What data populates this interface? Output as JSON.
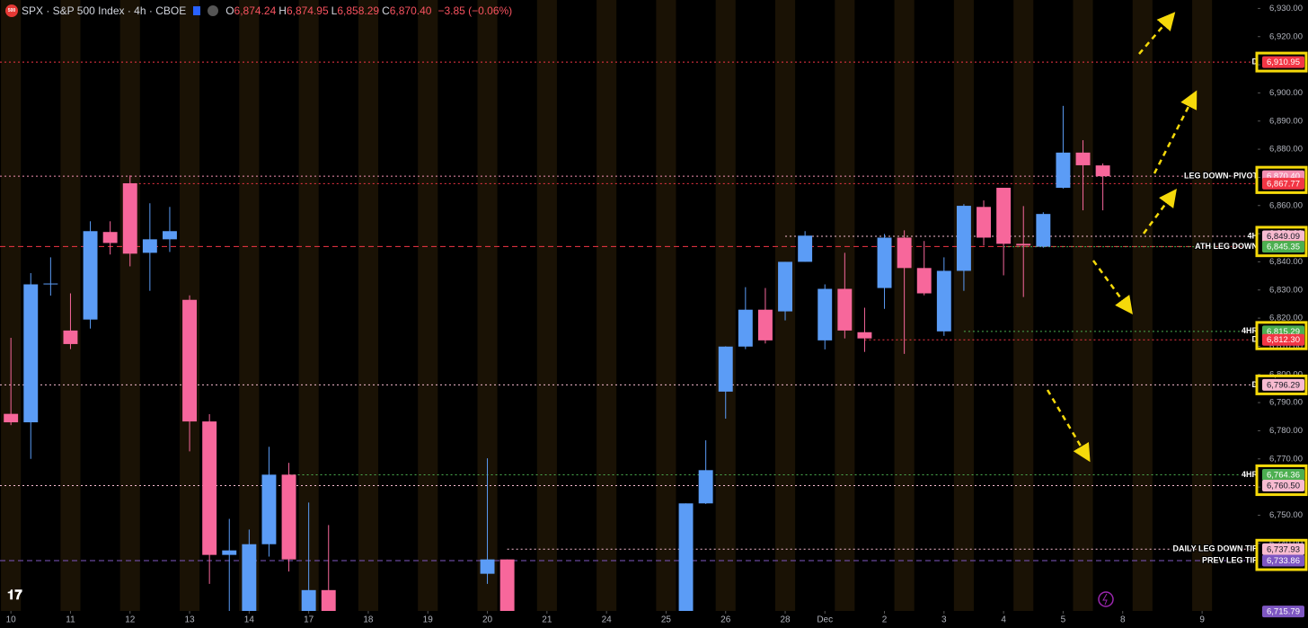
{
  "chart_data": {
    "type": "candlestick",
    "header": {
      "icon": "500",
      "symbol": "SPX · S&P 500 Index · 4h · CBOE",
      "ohlc": [
        {
          "key": "O",
          "value": "6,874.24"
        },
        {
          "key": "H",
          "value": "6,874.95"
        },
        {
          "key": "L",
          "value": "6,858.29"
        },
        {
          "key": "C",
          "value": "6,870.40"
        }
      ],
      "change": "−3.85 (−0.06%)"
    },
    "up_color": "#5b9cf6",
    "down_color": "#f7679b",
    "xlim": [
      -0.55,
      62.8
    ],
    "ylim": [
      6716,
      6933
    ],
    "xticks": [
      {
        "value": 0,
        "label": "10"
      },
      {
        "value": 3,
        "label": "11"
      },
      {
        "value": 6,
        "label": "12"
      },
      {
        "value": 9,
        "label": "13"
      },
      {
        "value": 12,
        "label": "14"
      },
      {
        "value": 15,
        "label": "17"
      },
      {
        "value": 18,
        "label": "18"
      },
      {
        "value": 21,
        "label": "19"
      },
      {
        "value": 24,
        "label": "20"
      },
      {
        "value": 27,
        "label": "21"
      },
      {
        "value": 30,
        "label": "24"
      },
      {
        "value": 33,
        "label": "25"
      },
      {
        "value": 36,
        "label": "26"
      },
      {
        "value": 39,
        "label": "28"
      },
      {
        "value": 41,
        "label": "Dec"
      },
      {
        "value": 44,
        "label": "2"
      },
      {
        "value": 47,
        "label": "3"
      },
      {
        "value": 50,
        "label": "4"
      },
      {
        "value": 53,
        "label": "5"
      },
      {
        "value": 56,
        "label": "8"
      },
      {
        "value": 60,
        "label": "9"
      }
    ],
    "yticks": [
      {
        "value": 6740,
        "label": "6,740.00"
      },
      {
        "value": 6750,
        "label": "6,750.00"
      },
      {
        "value": 6760,
        "label": "6,760.00"
      },
      {
        "value": 6770,
        "label": "6,770.00"
      },
      {
        "value": 6780,
        "label": "6,780.00"
      },
      {
        "value": 6790,
        "label": "6,790.00"
      },
      {
        "value": 6800,
        "label": "6,800.00"
      },
      {
        "value": 6810,
        "label": "6,810.00"
      },
      {
        "value": 6820,
        "label": "6,820.00"
      },
      {
        "value": 6830,
        "label": "6,830.00"
      },
      {
        "value": 6840,
        "label": "6,840.00"
      },
      {
        "value": 6850,
        "label": "6,850.00"
      },
      {
        "value": 6860,
        "label": "6,860.00"
      },
      {
        "value": 6870,
        "label": "6,870.00"
      },
      {
        "value": 6880,
        "label": "6,880.00"
      },
      {
        "value": 6890,
        "label": "6,890.00"
      },
      {
        "value": 6900,
        "label": "6,900.00"
      },
      {
        "value": 6910,
        "label": "6,910.00"
      },
      {
        "value": 6920,
        "label": "6,920.00"
      },
      {
        "value": 6930,
        "label": "6,930.00"
      }
    ],
    "candles": [
      {
        "x": 0,
        "open": 6786,
        "high": 6813,
        "low": 6782,
        "close": 6783
      },
      {
        "x": 1,
        "open": 6783,
        "high": 6836,
        "low": 6770,
        "close": 6832
      },
      {
        "x": 2,
        "open": 6832,
        "high": 6841.6,
        "low": 6828,
        "close": 6832.3
      },
      {
        "x": 3,
        "open": 6815.6,
        "high": 6828.8,
        "low": 6809,
        "close": 6810.8
      },
      {
        "x": 4,
        "open": 6819.5,
        "high": 6854.4,
        "low": 6816.3,
        "close": 6850.9
      },
      {
        "x": 5,
        "open": 6850.6,
        "high": 6854.4,
        "low": 6842.6,
        "close": 6846.7
      },
      {
        "x": 6,
        "open": 6867.9,
        "high": 6870.7,
        "low": 6838.4,
        "close": 6842.9
      },
      {
        "x": 7,
        "open": 6843.2,
        "high": 6860.8,
        "low": 6829.7,
        "close": 6848
      },
      {
        "x": 8,
        "open": 6848,
        "high": 6859.5,
        "low": 6843.5,
        "close": 6850.9
      },
      {
        "x": 9,
        "open": 6826.5,
        "high": 6828.1,
        "low": 6772.7,
        "close": 6783.3
      },
      {
        "x": 10,
        "open": 6783.3,
        "high": 6785.9,
        "low": 6725.6,
        "close": 6735.9
      },
      {
        "x": 11,
        "open": 6735.9,
        "high": 6748.7,
        "low": 6716,
        "close": 6737.5
      },
      {
        "x": 12,
        "open": 6714,
        "high": 6744.9,
        "low": 6714,
        "close": 6739.7
      },
      {
        "x": 13,
        "open": 6739.7,
        "high": 6774.3,
        "low": 6735.3,
        "close": 6764.4
      },
      {
        "x": 14,
        "open": 6764.4,
        "high": 6768.6,
        "low": 6730,
        "close": 6734.3
      },
      {
        "x": 15,
        "open": 6714,
        "high": 6754.5,
        "low": 6714,
        "close": 6723.4
      },
      {
        "x": 16,
        "open": 6723.4,
        "high": 6746.5,
        "low": 6714,
        "close": 6716
      },
      {
        "x": 24,
        "open": 6729.2,
        "high": 6770.2,
        "low": 6725.6,
        "close": 6734.3
      },
      {
        "x": 25,
        "open": 6734.3,
        "high": 6734.3,
        "low": 6714,
        "close": 6714
      },
      {
        "x": 34,
        "open": 6714,
        "high": 6754.2,
        "low": 6714,
        "close": 6754.2
      },
      {
        "x": 35,
        "open": 6754.2,
        "high": 6776.6,
        "low": 6754,
        "close": 6766
      },
      {
        "x": 36,
        "open": 6793.9,
        "high": 6810,
        "low": 6784.3,
        "close": 6809.9
      },
      {
        "x": 37,
        "open": 6809.9,
        "high": 6831,
        "low": 6809,
        "close": 6823
      },
      {
        "x": 38,
        "open": 6823,
        "high": 6830.7,
        "low": 6811,
        "close": 6812.1
      },
      {
        "x": 39,
        "open": 6822.4,
        "high": 6840,
        "low": 6819.2,
        "close": 6840
      },
      {
        "x": 40,
        "open": 6840,
        "high": 6850.9,
        "low": 6840,
        "close": 6849.3
      },
      {
        "x": 41,
        "open": 6812.1,
        "high": 6832,
        "low": 6808.9,
        "close": 6830.4
      },
      {
        "x": 42,
        "open": 6830.4,
        "high": 6843.2,
        "low": 6812.8,
        "close": 6815.6
      },
      {
        "x": 43,
        "open": 6815,
        "high": 6823.7,
        "low": 6808,
        "close": 6812.8
      },
      {
        "x": 44,
        "open": 6830.7,
        "high": 6849.9,
        "low": 6823.3,
        "close": 6848.6
      },
      {
        "x": 45,
        "open": 6848.6,
        "high": 6851.2,
        "low": 6807.3,
        "close": 6837.8
      },
      {
        "x": 46,
        "open": 6837.8,
        "high": 6847.4,
        "low": 6828.1,
        "close": 6828.8
      },
      {
        "x": 47,
        "open": 6815.3,
        "high": 6841.6,
        "low": 6813.7,
        "close": 6836.8
      },
      {
        "x": 48,
        "open": 6836.8,
        "high": 6860.5,
        "low": 6829.7,
        "close": 6859.9
      },
      {
        "x": 49,
        "open": 6859.5,
        "high": 6861.8,
        "low": 6845.8,
        "close": 6848.6
      },
      {
        "x": 50,
        "open": 6866.3,
        "high": 6866.3,
        "low": 6835.2,
        "close": 6846.4
      },
      {
        "x": 51,
        "open": 6846.4,
        "high": 6859.8,
        "low": 6827.5,
        "close": 6845.8
      },
      {
        "x": 52,
        "open": 6845.4,
        "high": 6857.6,
        "low": 6845,
        "close": 6857
      },
      {
        "x": 53,
        "open": 6866.3,
        "high": 6895.4,
        "low": 6866,
        "close": 6878.8
      },
      {
        "x": 54,
        "open": 6878.8,
        "high": 6883.2,
        "low": 6858.3,
        "close": 6874.3
      },
      {
        "x": 55,
        "open": 6874.24,
        "high": 6874.95,
        "low": 6858.29,
        "close": 6870.4
      }
    ],
    "levels": [
      {
        "value": 6910.95,
        "label": "6,910.95",
        "name": "D",
        "color": "#f23645",
        "badge_text": "#ffffff",
        "style": "dotted"
      },
      {
        "value": 6870.4,
        "label": "6,870.40",
        "name": "LEG DOWN- PIVOT",
        "color": "#f48fb1",
        "badge_text": "#ffffff",
        "style": "dotted"
      },
      {
        "value": 6867.77,
        "label": "6,867.77",
        "color": "#f23645",
        "badge_text": "#ffffff",
        "style": "dotted",
        "x0": 6
      },
      {
        "value": 6849.09,
        "label": "6,849.09",
        "name": "4H",
        "color": "#f8bbd0",
        "badge_text": "#131722",
        "style": "dotted",
        "x0": 39
      },
      {
        "value": 6845.46,
        "label": "6,845.46",
        "color": "#f23645",
        "badge_text": "#ffffff",
        "style": "dashed"
      },
      {
        "value": 6845.35,
        "label": "6,845.35",
        "name": "ATH LEG DOWN",
        "color": "#4caf50",
        "badge_text": "#ffffff",
        "style": "dotted",
        "x0": 50
      },
      {
        "value": 6815.29,
        "label": "6,815.29",
        "name": "4HR",
        "color": "#4caf50",
        "badge_text": "#ffffff",
        "style": "dotted",
        "x0": 48
      },
      {
        "value": 6812.3,
        "label": "6,812.30",
        "name": "D",
        "color": "#f23645",
        "badge_text": "#ffffff",
        "style": "dotted",
        "x0": 43
      },
      {
        "value": 6796.29,
        "label": "6,796.29",
        "name": "D",
        "color": "#f8bbd0",
        "badge_text": "#131722",
        "style": "dotted"
      },
      {
        "value": 6764.36,
        "label": "6,764.36",
        "name": "4HR",
        "color": "#4caf50",
        "badge_text": "#ffffff",
        "style": "dotted",
        "x0": 14
      },
      {
        "value": 6760.5,
        "label": "6,760.50",
        "color": "#f8bbd0",
        "badge_text": "#131722",
        "style": "dotted"
      },
      {
        "value": 6737.93,
        "label": "6,737.93",
        "name": "DAILY LEG DOWN TIP",
        "color": "#f8bbd0",
        "badge_text": "#131722",
        "style": "dotted",
        "x0": 25
      },
      {
        "value": 6733.86,
        "label": "6,733.86",
        "name": "PREV LEG TIP",
        "color": "#7e57c2",
        "badge_text": "#ffffff",
        "style": "dashed"
      },
      {
        "value": 6715.79,
        "label": "6,715.79",
        "color": "#7e57c2",
        "badge_text": "#ffffff",
        "style": "none"
      }
    ]
  }
}
